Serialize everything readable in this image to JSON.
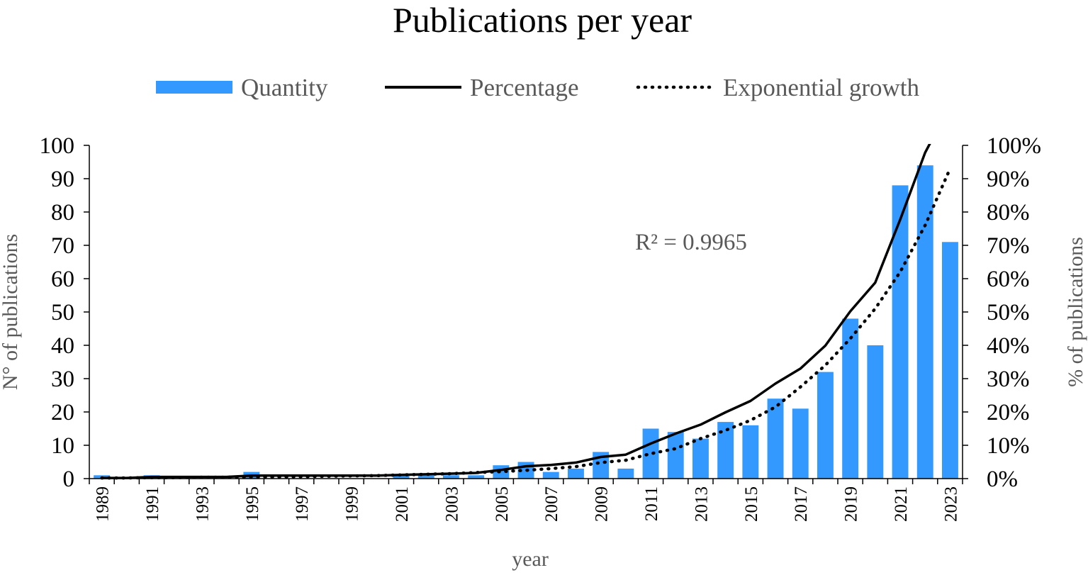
{
  "chart_data": {
    "type": "bar",
    "title": "Publications per year",
    "xlabel": "year",
    "ylabel": "N° of publications",
    "y2label": "% of publications",
    "ylim": [
      0,
      100
    ],
    "y2lim": [
      0,
      100
    ],
    "yticks": [
      "0",
      "10",
      "20",
      "30",
      "40",
      "50",
      "60",
      "70",
      "80",
      "90",
      "100"
    ],
    "y2ticks": [
      "0%",
      "10%",
      "20%",
      "30%",
      "40%",
      "50%",
      "60%",
      "70%",
      "80%",
      "90%",
      "100%"
    ],
    "categories": [
      1989,
      1990,
      1991,
      1992,
      1993,
      1994,
      1995,
      1996,
      1997,
      1998,
      1999,
      2000,
      2001,
      2002,
      2003,
      2004,
      2005,
      2006,
      2007,
      2008,
      2009,
      2010,
      2011,
      2012,
      2013,
      2014,
      2015,
      2016,
      2017,
      2018,
      2019,
      2020,
      2021,
      2022,
      2023
    ],
    "xtick_labels": [
      "1989",
      "1991",
      "1993",
      "1995",
      "1997",
      "1999",
      "2001",
      "2003",
      "2005",
      "2007",
      "2009",
      "2011",
      "2013",
      "2015",
      "2017",
      "2019",
      "2021",
      "2023"
    ],
    "series": [
      {
        "name": "Quantity",
        "kind": "bar",
        "axis": "left",
        "color": "#3399ff",
        "values": [
          1,
          0,
          1,
          0,
          0,
          0,
          2,
          0,
          0,
          0,
          0,
          0,
          1,
          1,
          1,
          1,
          4,
          5,
          2,
          3,
          8,
          3,
          15,
          14,
          12,
          17,
          16,
          24,
          21,
          32,
          48,
          40,
          88,
          94,
          71
        ]
      },
      {
        "name": "Percentage",
        "kind": "line",
        "axis": "right",
        "color": "#000000",
        "values": [
          0.2,
          0.2,
          0.5,
          0.5,
          0.5,
          0.5,
          0.9,
          0.9,
          0.9,
          0.9,
          0.9,
          0.9,
          1.1,
          1.3,
          1.5,
          1.7,
          2.6,
          3.7,
          4.1,
          4.8,
          6.5,
          7.2,
          10.5,
          13.5,
          16.2,
          19.9,
          23.3,
          28.5,
          33.0,
          39.9,
          50.2,
          58.8,
          77.7,
          97.8,
          112.0
        ]
      },
      {
        "name": "Exponential growth",
        "kind": "dotted-line",
        "axis": "right",
        "color": "#000000",
        "values": [
          0.2,
          0.2,
          0.3,
          0.3,
          0.4,
          0.4,
          0.5,
          0.5,
          0.6,
          0.7,
          0.8,
          0.9,
          1.1,
          1.3,
          1.5,
          1.8,
          2.1,
          2.5,
          3.0,
          3.6,
          4.8,
          5.5,
          7.5,
          9.0,
          12.0,
          14.5,
          17.5,
          21.5,
          27.5,
          34.0,
          42.0,
          51.0,
          62.0,
          76.0,
          93.0
        ]
      }
    ],
    "annotation": "R² = 0.9965",
    "legend": "top",
    "grid": false
  }
}
